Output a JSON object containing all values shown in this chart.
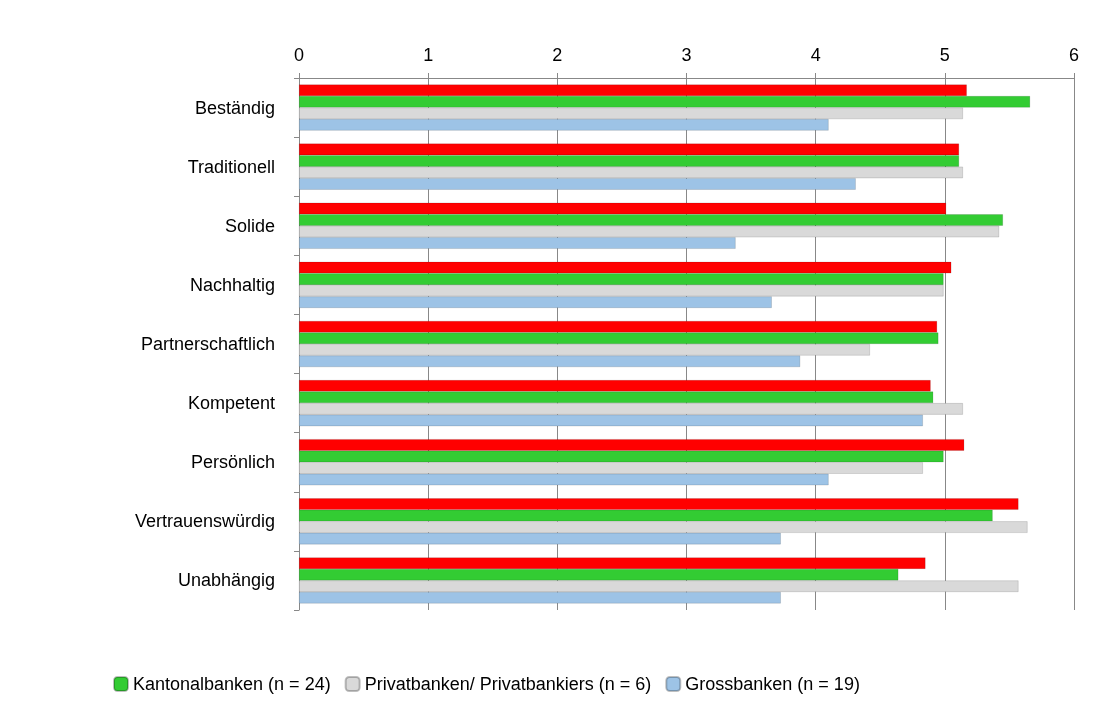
{
  "chart_data": {
    "type": "bar",
    "orientation": "horizontal",
    "categories": [
      "Beständig",
      "Traditionell",
      "Solide",
      "Nachhaltig",
      "Partnerschaftlich",
      "Kompetent",
      "Persönlich",
      "Vertrauenswürdig",
      "Unabhängig"
    ],
    "series": [
      {
        "color": "#ff0000",
        "values": [
          5.17,
          5.11,
          5.01,
          5.05,
          4.94,
          4.89,
          5.15,
          5.57,
          4.85
        ]
      },
      {
        "name": "Kantonalbanken (n = 24)",
        "color": "#33cc33",
        "values": [
          5.66,
          5.11,
          5.45,
          4.99,
          4.95,
          4.91,
          4.99,
          5.37,
          4.64
        ]
      },
      {
        "name": "Privatbanken/ Privatbankiers (n = 6)",
        "color": "#d9d9d9",
        "values": [
          5.14,
          5.14,
          5.42,
          4.99,
          4.42,
          5.14,
          4.83,
          5.64,
          5.57
        ]
      },
      {
        "name": "Grossbanken (n = 19)",
        "color": "#9dc3e6",
        "values": [
          4.1,
          4.31,
          3.38,
          3.66,
          3.88,
          4.83,
          4.1,
          3.73,
          3.73
        ]
      }
    ],
    "xlim": [
      0,
      6
    ],
    "xticks": [
      0,
      1,
      2,
      3,
      4,
      5,
      6
    ],
    "grid": "x",
    "legend": "bottom"
  }
}
